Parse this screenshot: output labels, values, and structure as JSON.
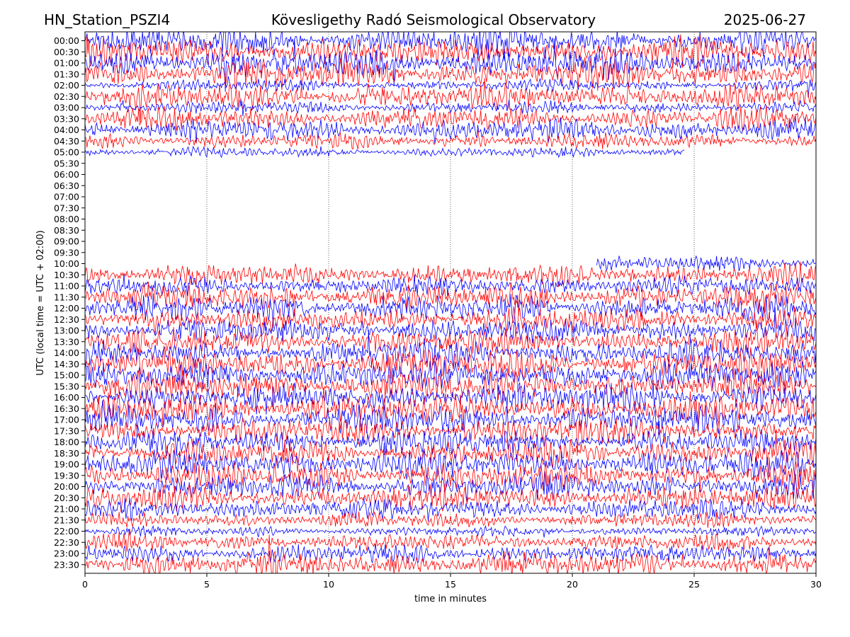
{
  "header": {
    "station": "HN_Station_PSZI4",
    "observatory": "Kövesligethy Radó Seismological Observatory",
    "date": "2025-06-27"
  },
  "chart_data": {
    "type": "line",
    "subtype": "helicorder",
    "xlabel": "time in minutes",
    "ylabel": "UTC (local time = UTC + 02:00)",
    "xlim": [
      0,
      30
    ],
    "xticks": [
      0,
      5,
      10,
      15,
      20,
      25,
      30
    ],
    "xgrid": "dotted vertical lines at 5-minute intervals",
    "row_labels": [
      "00:00",
      "00:30",
      "01:00",
      "01:30",
      "02:00",
      "02:30",
      "03:00",
      "03:30",
      "04:00",
      "04:30",
      "05:00",
      "05:30",
      "06:00",
      "06:30",
      "07:00",
      "07:30",
      "08:00",
      "08:30",
      "09:00",
      "09:30",
      "10:00",
      "10:30",
      "11:00",
      "11:30",
      "12:00",
      "12:30",
      "13:00",
      "13:30",
      "14:00",
      "14:30",
      "15:00",
      "15:30",
      "16:00",
      "16:30",
      "17:00",
      "17:30",
      "18:00",
      "18:30",
      "19:00",
      "19:30",
      "20:00",
      "20:30",
      "21:00",
      "21:30",
      "22:00",
      "22:30",
      "23:00",
      "23:30"
    ],
    "trace_colors": [
      "#0000ff",
      "#ff0000"
    ],
    "color_pattern": "rows alternate blue (even half-hours) and red (odd half-hours)",
    "data_gaps": [
      {
        "row": "05:00",
        "end_minute": 24.6
      },
      {
        "from_row": "05:30",
        "to_row": "09:30",
        "note": "no trace recorded"
      },
      {
        "row": "10:00",
        "start_minute": 21
      }
    ],
    "row_activity": [
      3,
      3,
      3,
      3,
      1.2,
      2.6,
      1.3,
      2.3,
      2.3,
      1.6,
      1,
      0,
      0,
      0,
      0,
      0,
      0,
      0,
      0,
      0,
      1.6,
      2.3,
      2,
      2.8,
      2.8,
      2.6,
      2.5,
      2.6,
      2.6,
      3,
      3,
      3,
      3,
      3,
      3,
      2.8,
      2.6,
      2.8,
      2.8,
      2.8,
      2.6,
      2.5,
      2.2,
      1.6,
      1,
      1.8,
      2,
      2.6
    ],
    "transient_events": [
      {
        "row": "03:00",
        "minute": 1.6,
        "amplitude": "large"
      },
      {
        "row": "03:00",
        "minute": 6.4,
        "amplitude": "large"
      },
      {
        "row": "03:00",
        "minute": 17.3,
        "amplitude": "medium"
      },
      {
        "row": "02:30",
        "minute": 13.5,
        "amplitude": "medium"
      },
      {
        "row": "02:30",
        "minute": 16.4,
        "amplitude": "medium"
      },
      {
        "row": "02:30",
        "minute": 18.2,
        "amplitude": "medium"
      },
      {
        "row": "02:30",
        "minute": 19.6,
        "amplitude": "medium"
      },
      {
        "row": "02:30",
        "minute": 22.3,
        "amplitude": "medium"
      },
      {
        "row": "02:30",
        "minute": 26.8,
        "amplitude": "large"
      },
      {
        "row": "22:30",
        "minute": 2.4,
        "amplitude": "medium"
      },
      {
        "row": "23:00",
        "minute": 2.9,
        "amplitude": "medium"
      }
    ]
  }
}
